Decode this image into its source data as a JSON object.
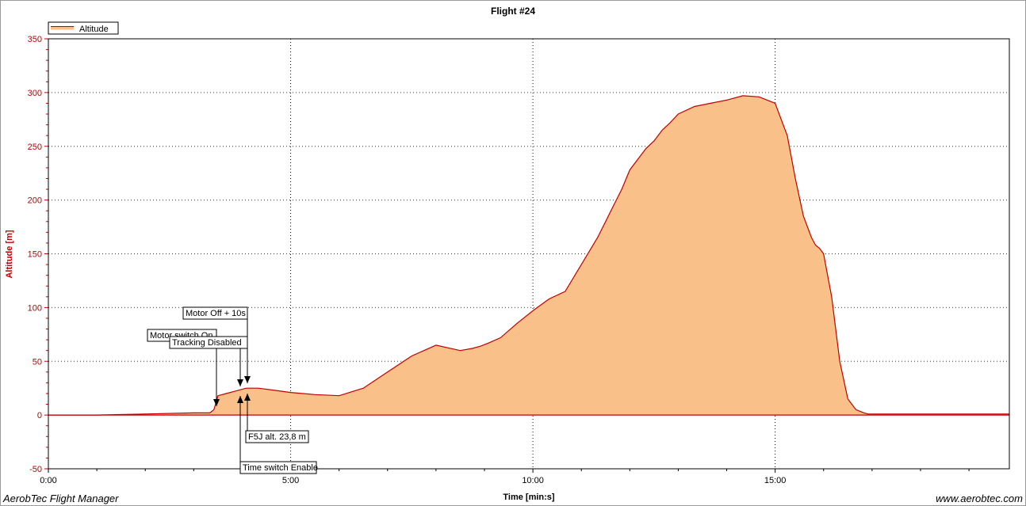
{
  "chart_data": {
    "type": "area",
    "title": "Flight #24",
    "xlabel": "Time [min:s]",
    "ylabel": "Altitude [m]",
    "xlim": [
      0,
      1190
    ],
    "ylim": [
      -50,
      350
    ],
    "x_ticks": [
      {
        "value": 0,
        "label": "0:00"
      },
      {
        "value": 300,
        "label": "5:00"
      },
      {
        "value": 600,
        "label": "10:00"
      },
      {
        "value": 900,
        "label": "15:00"
      }
    ],
    "y_ticks": [
      -50,
      0,
      50,
      100,
      150,
      200,
      250,
      300,
      350
    ],
    "grid": true,
    "legend": {
      "position": "top-left",
      "entries": [
        "Altitude"
      ]
    },
    "series": [
      {
        "name": "Altitude",
        "line_color": "#c00000",
        "fill_color": "#f9c189",
        "x": [
          0,
          60,
          120,
          180,
          200,
          205,
          210,
          220,
          230,
          245,
          260,
          280,
          300,
          330,
          360,
          390,
          420,
          450,
          480,
          510,
          525,
          535,
          545,
          560,
          580,
          600,
          620,
          640,
          660,
          680,
          690,
          700,
          710,
          720,
          740,
          750,
          760,
          770,
          780,
          800,
          820,
          840,
          860,
          880,
          900,
          915,
          925,
          935,
          945,
          950,
          955,
          960,
          970,
          980,
          990,
          1000,
          1010,
          1015,
          1020,
          1030,
          1040,
          1050,
          1060,
          1070,
          1080,
          1090,
          1100,
          1120,
          1140,
          1160,
          1180,
          1190
        ],
        "y": [
          0,
          0,
          1,
          2,
          2,
          5,
          18,
          20,
          22,
          25,
          25,
          23,
          21,
          19,
          18,
          25,
          40,
          55,
          65,
          60,
          62,
          64,
          67,
          72,
          85,
          97,
          108,
          115,
          140,
          165,
          180,
          195,
          210,
          228,
          248,
          255,
          265,
          272,
          280,
          287,
          290,
          293,
          297,
          296,
          290,
          260,
          220,
          185,
          165,
          158,
          155,
          150,
          110,
          50,
          15,
          5,
          2,
          1,
          1,
          1,
          1,
          1,
          1,
          1,
          1,
          1,
          1,
          1,
          1,
          1,
          1,
          1
        ]
      }
    ],
    "annotations": [
      {
        "text": "Motor Off + 10s",
        "time": 251,
        "value": 25
      },
      {
        "text": "Motor switch On",
        "time": 208,
        "value": 2
      },
      {
        "text": "Tracking Disabled",
        "time": 240,
        "value": 21
      },
      {
        "text": "F5J alt. 23,8 m",
        "time": 246,
        "value": 23.8
      },
      {
        "text": "Time switch Enable",
        "time": 240,
        "value": 21
      }
    ]
  },
  "footer": {
    "left": "AerobTec Flight Manager",
    "right": "www.aerobtec.com"
  }
}
